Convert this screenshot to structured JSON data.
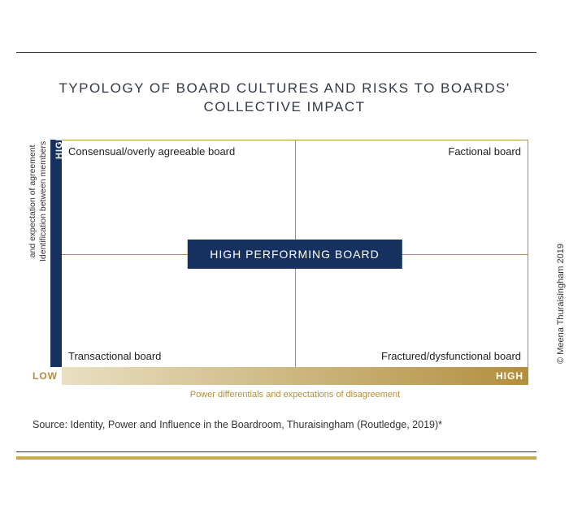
{
  "title": "TYPOLOGY OF BOARD CULTURES AND RISKS TO BOARDS' COLLECTIVE IMPACT",
  "copyright": "© Meena Thuraisingham 2019",
  "matrix": {
    "type": "2x2-matrix",
    "y_axis": {
      "label_line1": "Identification between members",
      "label_line2": "and expectation of agreement",
      "high_label": "HIGH",
      "bar_color": "#16315f"
    },
    "x_axis": {
      "label": "Power differentials and expectations of disagreement",
      "low_label": "LOW",
      "high_label": "HIGH",
      "low_color": "#b18f3e",
      "gradient_start": "#e9dfc2",
      "gradient_end": "#b18f3e",
      "label_color": "#b18f3e"
    },
    "grid_color": "#b18f3e",
    "quadrants": {
      "top_left": "Consensual/overly agreeable board",
      "top_right": "Factional board",
      "bottom_left": "Transactional board",
      "bottom_right": "Fractured/dysfunctional board"
    },
    "center": {
      "label": "HIGH PERFORMING BOARD",
      "bg_color": "#16315f"
    }
  },
  "source": "Source: Identity, Power and Influence in the Boardroom, Thuraisingham (Routledge, 2019)*",
  "bottom_rule_color": "#c9a94e"
}
